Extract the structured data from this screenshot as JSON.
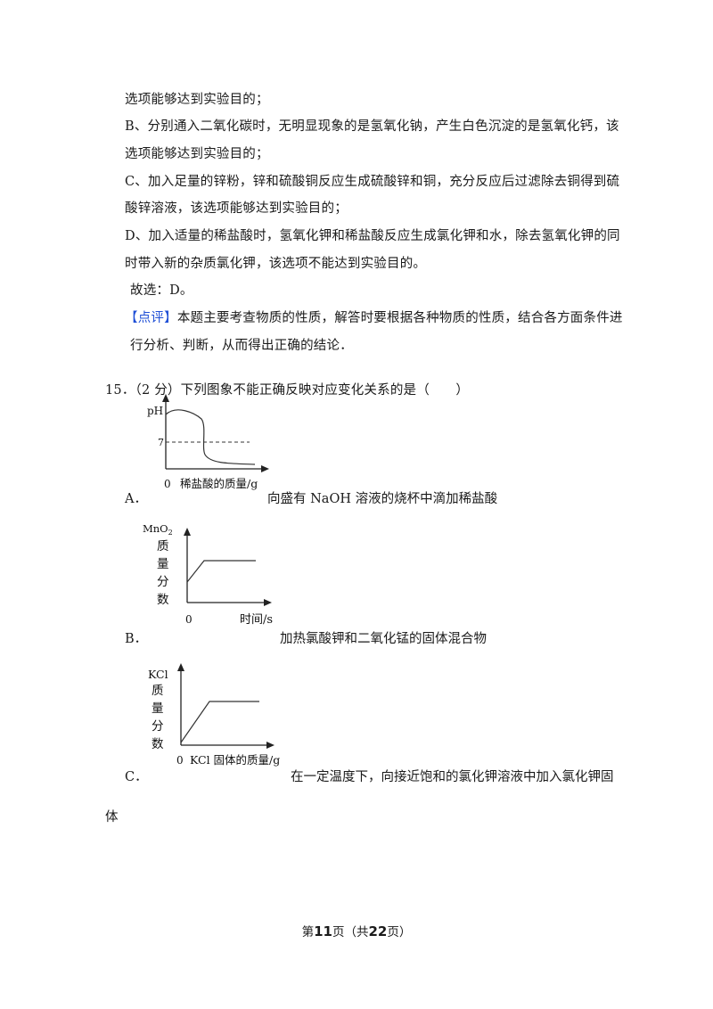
{
  "analysis": {
    "l1": "选项能够达到实验目的；",
    "l2": "B、分别通入二氧化碳时，无明显现象的是氢氧化钠，产生白色沉淀的是氢氧化钙，该",
    "l3": "选项能够达到实验目的；",
    "l4": "C、加入足量的锌粉，锌和硫酸铜反应生成硫酸锌和铜，充分反应后过滤除去铜得到硫",
    "l5": "酸锌溶液，该选项能够达到实验目的；",
    "l6": "D、加入适量的稀盐酸时，氢氧化钾和稀盐酸反应生成氯化钾和水，除去氢氧化钾的同",
    "l7": "时带入新的杂质氯化钾，该选项不能达到实验目的。",
    "l8": "故选：D。",
    "comment_tag": "【点评】",
    "comment_l1": "本题主要考查物质的性质，解答时要根据各种物质的性质，结合各方面条件进",
    "comment_l2": "行分析、判断，从而得出正确的结论．"
  },
  "question": {
    "stem": "15．（2 分）下列图象不能正确反映对应变化关系的是（　　）"
  },
  "options": {
    "A": {
      "letter": "A．",
      "text": "向盛有 NaOH 溶液的烧杯中滴加稀盐酸",
      "graph": {
        "ylabel": "pH",
        "ref": "7",
        "origin": "0",
        "xlabel": "稀盐酸的质量/g"
      }
    },
    "B": {
      "letter": "B．",
      "text": "加热氯酸钾和二氧化锰的固体混合物",
      "graph": {
        "ylabel_top": "MnO",
        "ylabel_sub": "2",
        "ylabel_chars": [
          "质",
          "量",
          "分",
          "数"
        ],
        "origin": "0",
        "xlabel": "时间/s"
      }
    },
    "C": {
      "letter": "C．",
      "text": "在一定温度下，向接近饱和的氯化钾溶液中加入氯化钾固",
      "text_cont": "体",
      "graph": {
        "ylabel_top": "KCl",
        "ylabel_chars": [
          "质",
          "量",
          "分",
          "数"
        ],
        "origin": "0",
        "xlabel": "KCl 固体的质量/g"
      }
    }
  },
  "footer": {
    "pre": "第",
    "page": "11",
    "mid": "页（共",
    "total": "22",
    "post": "页）"
  }
}
